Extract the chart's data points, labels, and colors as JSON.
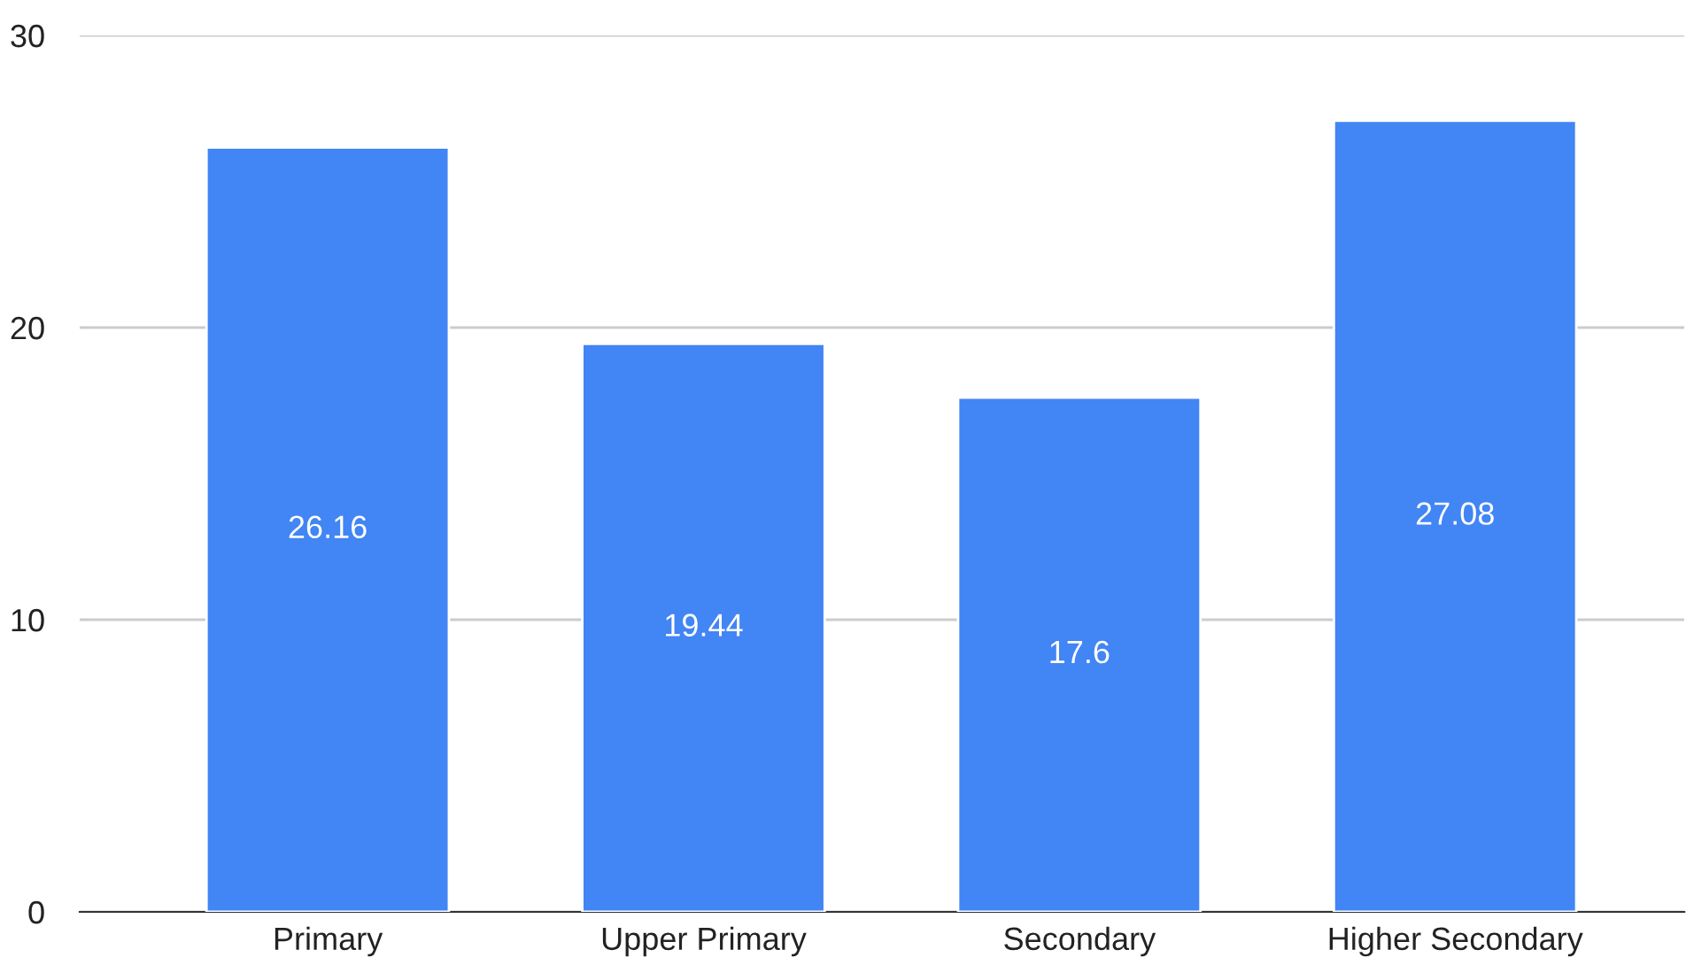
{
  "chart_data": {
    "type": "bar",
    "categories": [
      "Primary",
      "Upper Primary",
      "Secondary",
      "Higher Secondary"
    ],
    "values": [
      26.16,
      19.44,
      17.6,
      27.08
    ],
    "color": "#4285f4",
    "ylim": [
      0,
      30
    ],
    "yticks": [
      0,
      10,
      20,
      30
    ],
    "grid": "y",
    "data_labels": true,
    "legend": false
  }
}
